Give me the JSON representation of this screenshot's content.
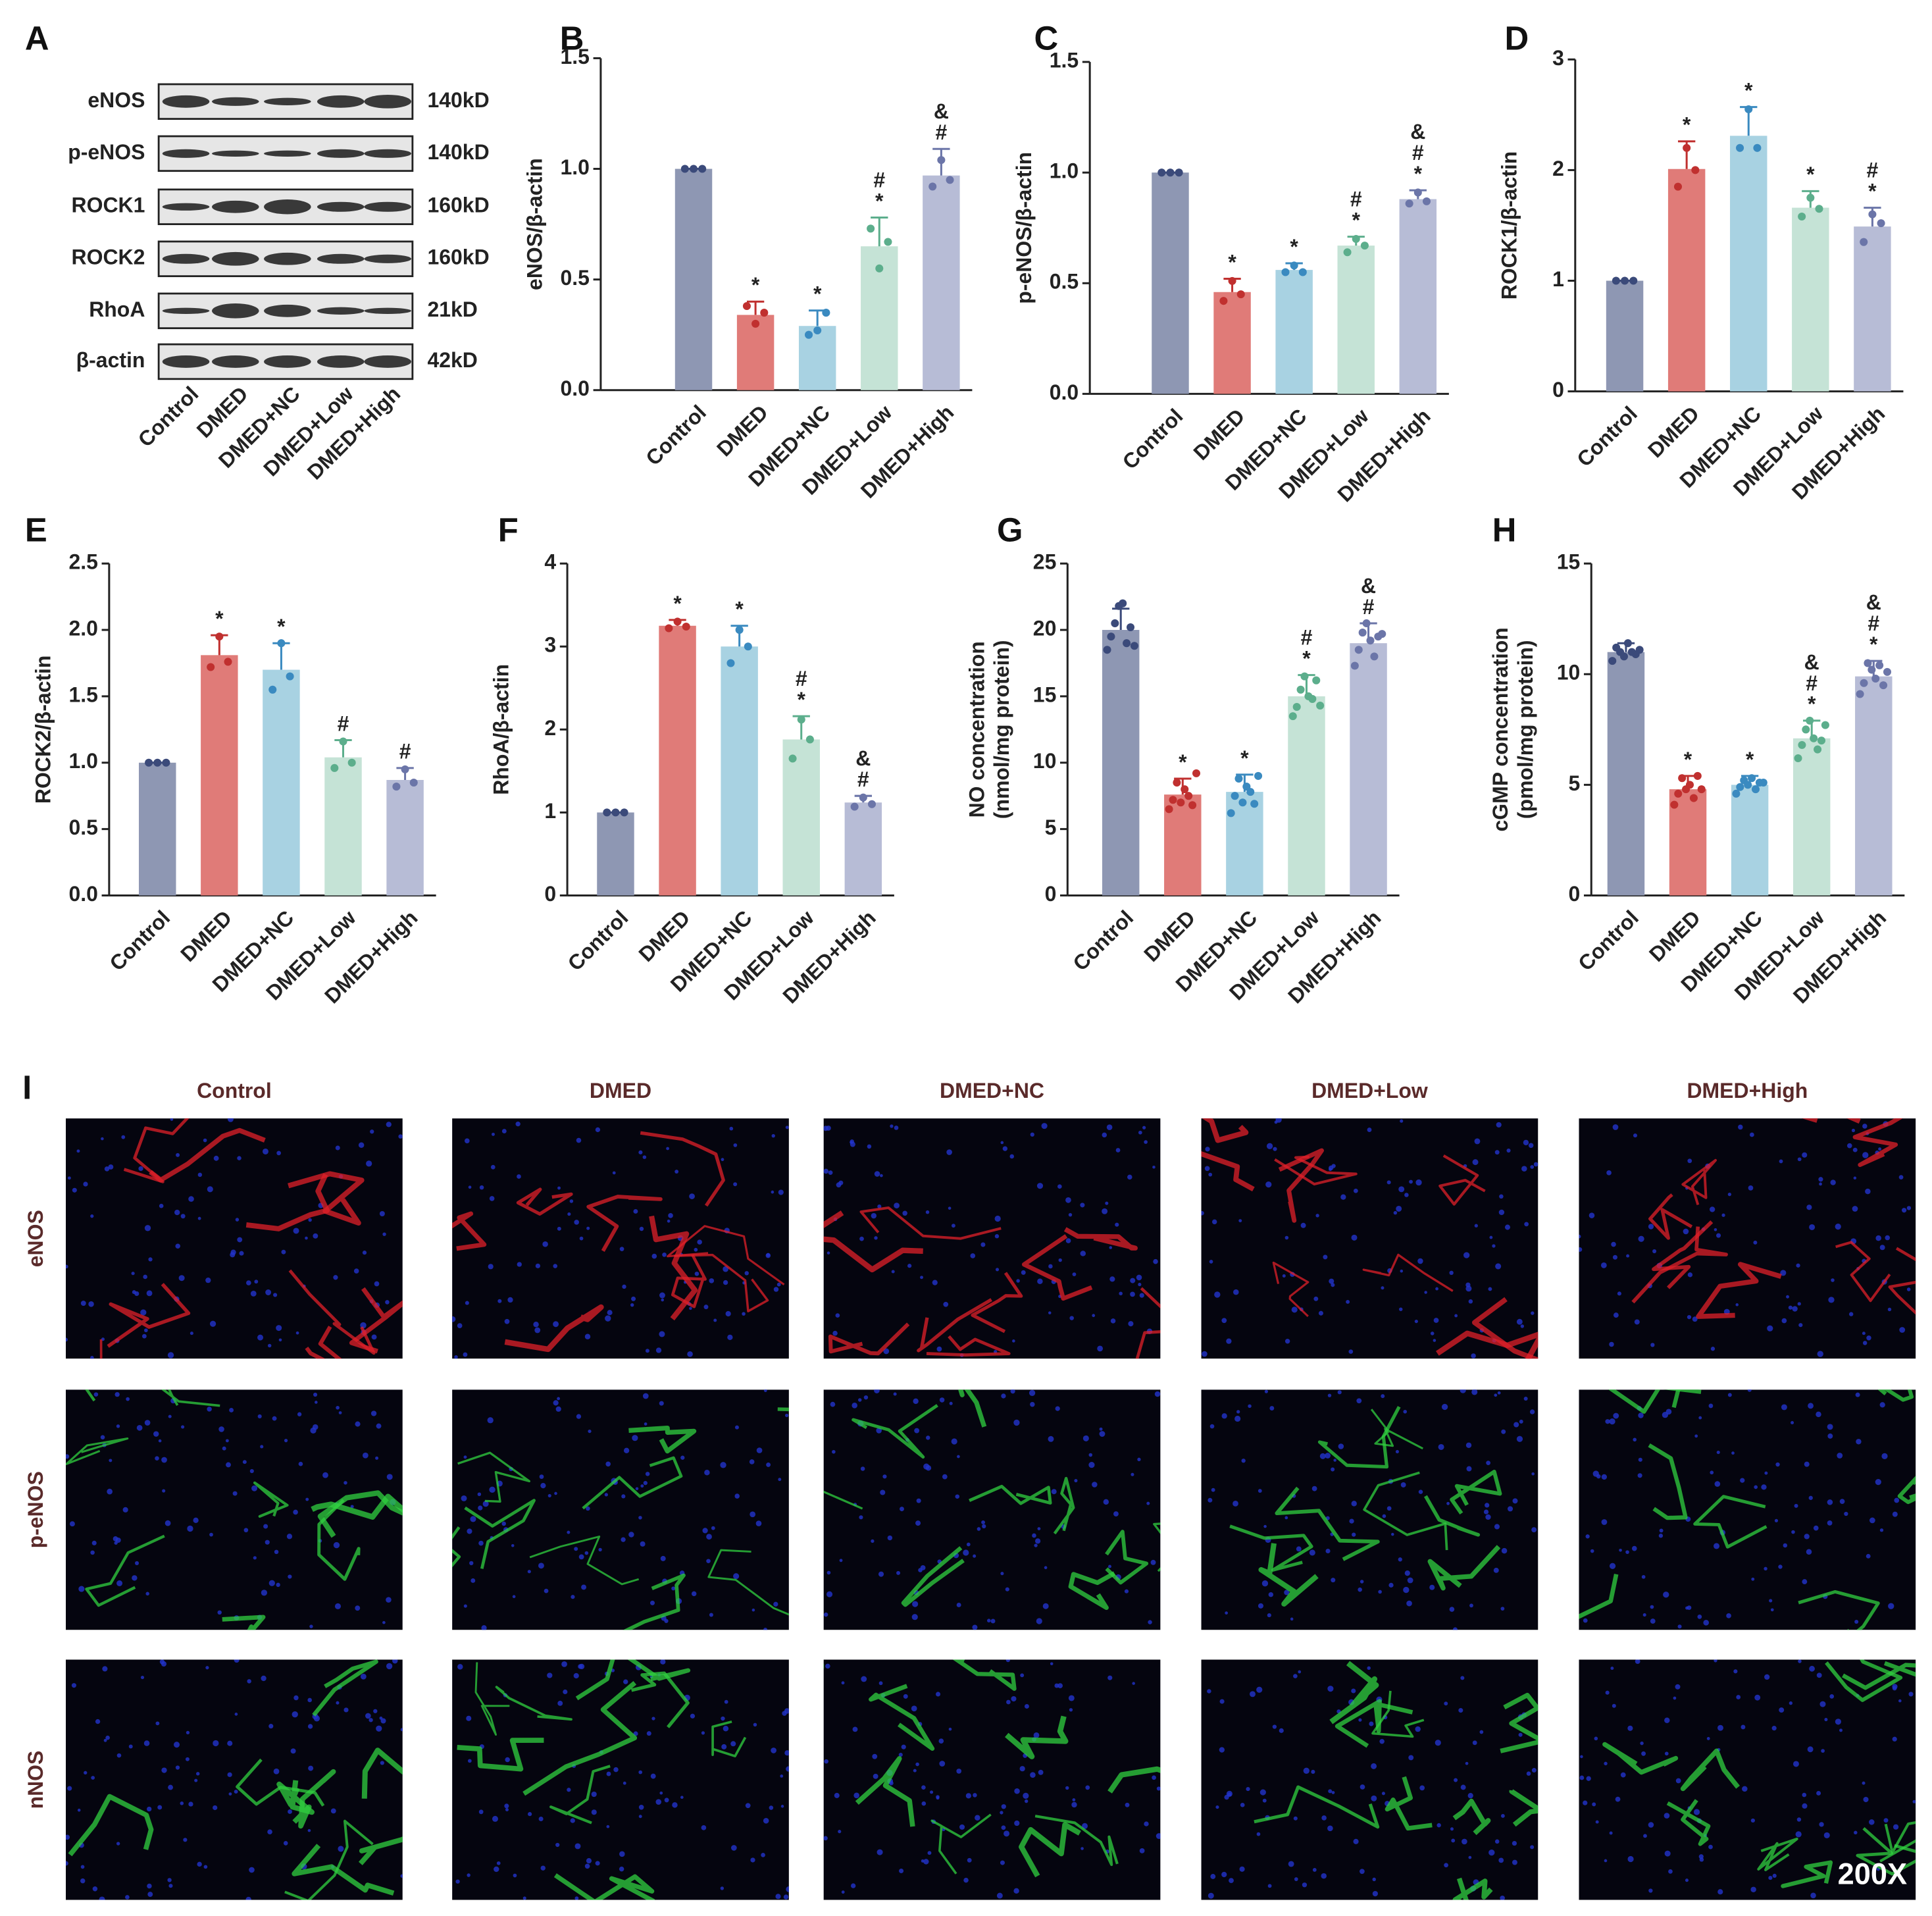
{
  "western_blot": {
    "panel": "A",
    "proteins": [
      "eNOS",
      "p-eNOS",
      "ROCK1",
      "ROCK2",
      "RhoA",
      "β-actin"
    ],
    "sizes": [
      "140kD",
      "140kD",
      "160kD",
      "160kD",
      "21kD",
      "42kD"
    ],
    "lanes": [
      "Control",
      "DMED",
      "DMED+NC",
      "DMED+Low",
      "DMED+High"
    ]
  },
  "chart_data": [
    {
      "type": "bar",
      "panel": "B",
      "y_label": [
        "eNOS/β-actin"
      ],
      "categories": [
        "Control",
        "DMED",
        "DMED+NC",
        "DMED+Low",
        "DMED+High"
      ],
      "values": [
        1.0,
        0.34,
        0.29,
        0.65,
        0.97
      ],
      "errors": [
        0,
        0.06,
        0.07,
        0.13,
        0.12
      ],
      "points": [
        [
          1,
          1,
          1
        ],
        [
          0.38,
          0.3,
          0.35
        ],
        [
          0.25,
          0.27,
          0.35
        ],
        [
          0.73,
          0.55,
          0.67
        ],
        [
          0.92,
          1.04,
          0.95
        ]
      ],
      "annotations": [
        [],
        [
          "*"
        ],
        [
          "*"
        ],
        [
          "#",
          "*"
        ],
        [
          "&",
          "#"
        ]
      ],
      "colors": [
        "#8e97b3",
        "#e07b78",
        "#a8d2e2",
        "#c5e3d6",
        "#b7bcd6"
      ],
      "point_colors": [
        "#3b4a7a",
        "#c0302f",
        "#3a8ac0",
        "#5cae8c",
        "#6b75a8"
      ],
      "ylim": [
        0,
        1.5
      ],
      "yticks": [
        {
          "value": 0,
          "label": "0.0"
        },
        {
          "value": 0.5,
          "label": "0.5"
        },
        {
          "value": 1,
          "label": "1.0"
        },
        {
          "value": 1.5,
          "label": "1.5"
        }
      ]
    },
    {
      "type": "bar",
      "panel": "C",
      "y_label": [
        "p-eNOS/β-actin"
      ],
      "categories": [
        "Control",
        "DMED",
        "DMED+NC",
        "DMED+Low",
        "DMED+High"
      ],
      "values": [
        1.0,
        0.46,
        0.56,
        0.67,
        0.88
      ],
      "errors": [
        0,
        0.06,
        0.03,
        0.04,
        0.04
      ],
      "points": [
        [
          1,
          1,
          1
        ],
        [
          0.42,
          0.51,
          0.45
        ],
        [
          0.55,
          0.58,
          0.55
        ],
        [
          0.64,
          0.7,
          0.67
        ],
        [
          0.86,
          0.91,
          0.87
        ]
      ],
      "annotations": [
        [],
        [
          "*"
        ],
        [
          "*"
        ],
        [
          "#",
          "*"
        ],
        [
          "&",
          "#",
          "*"
        ]
      ],
      "colors": [
        "#8e97b3",
        "#e07b78",
        "#a8d2e2",
        "#c5e3d6",
        "#b7bcd6"
      ],
      "point_colors": [
        "#3b4a7a",
        "#c0302f",
        "#3a8ac0",
        "#5cae8c",
        "#6b75a8"
      ],
      "ylim": [
        0,
        1.5
      ],
      "yticks": [
        {
          "value": 0,
          "label": "0.0"
        },
        {
          "value": 0.5,
          "label": "0.5"
        },
        {
          "value": 1,
          "label": "1.0"
        },
        {
          "value": 1.5,
          "label": "1.5"
        }
      ]
    },
    {
      "type": "bar",
      "panel": "D",
      "y_label": [
        "ROCK1/β-actin"
      ],
      "categories": [
        "Control",
        "DMED",
        "DMED+NC",
        "DMED+Low",
        "DMED+High"
      ],
      "values": [
        1.0,
        2.01,
        2.31,
        1.66,
        1.49
      ],
      "errors": [
        0,
        0.25,
        0.26,
        0.15,
        0.17
      ],
      "points": [
        [
          1,
          1,
          1
        ],
        [
          1.85,
          2.2,
          2.0
        ],
        [
          2.2,
          2.55,
          2.2
        ],
        [
          1.58,
          1.75,
          1.65
        ],
        [
          1.35,
          1.6,
          1.52
        ]
      ],
      "annotations": [
        [],
        [
          "*"
        ],
        [
          "*"
        ],
        [
          "*"
        ],
        [
          "#",
          "*"
        ]
      ],
      "colors": [
        "#8e97b3",
        "#e07b78",
        "#a8d2e2",
        "#c5e3d6",
        "#b7bcd6"
      ],
      "point_colors": [
        "#3b4a7a",
        "#c0302f",
        "#3a8ac0",
        "#5cae8c",
        "#6b75a8"
      ],
      "ylim": [
        0,
        3
      ],
      "yticks": [
        0,
        1,
        2,
        3
      ]
    },
    {
      "type": "bar",
      "panel": "E",
      "y_label": [
        "ROCK2/β-actin"
      ],
      "categories": [
        "Control",
        "DMED",
        "DMED+NC",
        "DMED+Low",
        "DMED+High"
      ],
      "values": [
        1.0,
        1.81,
        1.7,
        1.04,
        0.87
      ],
      "errors": [
        0,
        0.15,
        0.2,
        0.13,
        0.09
      ],
      "points": [
        [
          1,
          1,
          1
        ],
        [
          1.72,
          1.95,
          1.76
        ],
        [
          1.55,
          1.9,
          1.65
        ],
        [
          0.96,
          1.16,
          1.0
        ],
        [
          0.82,
          0.95,
          0.85
        ]
      ],
      "annotations": [
        [],
        [
          "*"
        ],
        [
          "*"
        ],
        [
          "#"
        ],
        [
          "#"
        ]
      ],
      "colors": [
        "#8e97b3",
        "#e07b78",
        "#a8d2e2",
        "#c5e3d6",
        "#b7bcd6"
      ],
      "point_colors": [
        "#3b4a7a",
        "#c0302f",
        "#3a8ac0",
        "#5cae8c",
        "#6b75a8"
      ],
      "ylim": [
        0,
        2.5
      ],
      "yticks": [
        {
          "value": 0,
          "label": "0.0"
        },
        {
          "value": 0.5,
          "label": "0.5"
        },
        {
          "value": 1,
          "label": "1.0"
        },
        {
          "value": 1.5,
          "label": "1.5"
        },
        {
          "value": 2,
          "label": "2.0"
        },
        {
          "value": 2.5,
          "label": "2.5"
        }
      ]
    },
    {
      "type": "bar",
      "panel": "F",
      "y_label": [
        "RhoA/β-actin"
      ],
      "categories": [
        "Control",
        "DMED",
        "DMED+NC",
        "DMED+Low",
        "DMED+High"
      ],
      "values": [
        1.0,
        3.25,
        3.0,
        1.88,
        1.12
      ],
      "errors": [
        0,
        0.07,
        0.25,
        0.28,
        0.08
      ],
      "points": [
        [
          1,
          1,
          1
        ],
        [
          3.22,
          3.3,
          3.24
        ],
        [
          2.8,
          3.2,
          3.0
        ],
        [
          1.65,
          2.12,
          1.88
        ],
        [
          1.07,
          1.18,
          1.1
        ]
      ],
      "annotations": [
        [],
        [
          "*"
        ],
        [
          "*"
        ],
        [
          "#",
          "*"
        ],
        [
          "&",
          "#"
        ]
      ],
      "colors": [
        "#8e97b3",
        "#e07b78",
        "#a8d2e2",
        "#c5e3d6",
        "#b7bcd6"
      ],
      "point_colors": [
        "#3b4a7a",
        "#c0302f",
        "#3a8ac0",
        "#5cae8c",
        "#6b75a8"
      ],
      "ylim": [
        0,
        4
      ],
      "yticks": [
        0,
        1,
        2,
        3,
        4
      ]
    },
    {
      "type": "bar",
      "panel": "G",
      "y_label": [
        "NO concentration",
        "(nmol/mg protein)"
      ],
      "categories": [
        "Control",
        "DMED",
        "DMED+NC",
        "DMED+Low",
        "DMED+High"
      ],
      "values": [
        20.0,
        7.6,
        7.8,
        15.0,
        19.0
      ],
      "errors": [
        1.6,
        1.2,
        1.3,
        1.6,
        1.5
      ],
      "points": [
        [
          18.5,
          19.5,
          20.5,
          21.8,
          22.0,
          19.0,
          20.2,
          18.8
        ],
        [
          6.5,
          7.2,
          8.5,
          7.0,
          8.0,
          7.5,
          6.8,
          9.2
        ],
        [
          6.2,
          7.5,
          8.8,
          7.0,
          8.2,
          7.8,
          6.9,
          9.0
        ],
        [
          13.5,
          14.2,
          15.5,
          16.5,
          15.0,
          14.8,
          16.2,
          14.3
        ],
        [
          17.3,
          18.5,
          19.8,
          20.5,
          19.2,
          18.0,
          19.5,
          19.7
        ]
      ],
      "annotations": [
        [],
        [
          "*"
        ],
        [
          "*"
        ],
        [
          "#",
          "*"
        ],
        [
          "&",
          "#"
        ]
      ],
      "colors": [
        "#8e97b3",
        "#e07b78",
        "#a8d2e2",
        "#c5e3d6",
        "#b7bcd6"
      ],
      "point_colors": [
        "#3b4a7a",
        "#c0302f",
        "#3a8ac0",
        "#5cae8c",
        "#6b75a8"
      ],
      "ylim": [
        0,
        25
      ],
      "yticks": [
        0,
        5,
        10,
        15,
        20,
        25
      ]
    },
    {
      "type": "bar",
      "panel": "H",
      "y_label": [
        "cGMP concentration",
        "(pmol/mg protein)"
      ],
      "categories": [
        "Control",
        "DMED",
        "DMED+NC",
        "DMED+Low",
        "DMED+High"
      ],
      "values": [
        11.0,
        4.8,
        5.0,
        7.1,
        9.9
      ],
      "errors": [
        0.4,
        0.6,
        0.4,
        0.8,
        0.7
      ],
      "points": [
        [
          10.6,
          11.2,
          11.0,
          10.8,
          11.4,
          11.0,
          10.9,
          11.1
        ],
        [
          4.1,
          4.6,
          5.3,
          4.8,
          5.0,
          4.4,
          5.4,
          4.8
        ],
        [
          4.6,
          4.9,
          5.2,
          5.0,
          5.3,
          4.8,
          5.1,
          5.1
        ],
        [
          6.2,
          6.8,
          7.5,
          7.9,
          7.1,
          6.6,
          7.0,
          7.7
        ],
        [
          9.1,
          9.6,
          10.5,
          10.2,
          9.8,
          10.4,
          9.5,
          10.1
        ]
      ],
      "annotations": [
        [],
        [
          "*"
        ],
        [
          "*"
        ],
        [
          "&",
          "#",
          "*"
        ],
        [
          "&",
          "#",
          "*"
        ]
      ],
      "colors": [
        "#8e97b3",
        "#e07b78",
        "#a8d2e2",
        "#c5e3d6",
        "#b7bcd6"
      ],
      "point_colors": [
        "#3b4a7a",
        "#c0302f",
        "#3a8ac0",
        "#5cae8c",
        "#6b75a8"
      ],
      "ylim": [
        0,
        15
      ],
      "yticks": [
        0,
        5,
        10,
        15
      ]
    }
  ],
  "immunofluorescence": {
    "panel": "I",
    "columns": [
      "Control",
      "DMED",
      "DMED+NC",
      "DMED+Low",
      "DMED+High"
    ],
    "rows": [
      "eNOS",
      "p-eNOS",
      "nNOS"
    ],
    "magnification": "200X"
  }
}
